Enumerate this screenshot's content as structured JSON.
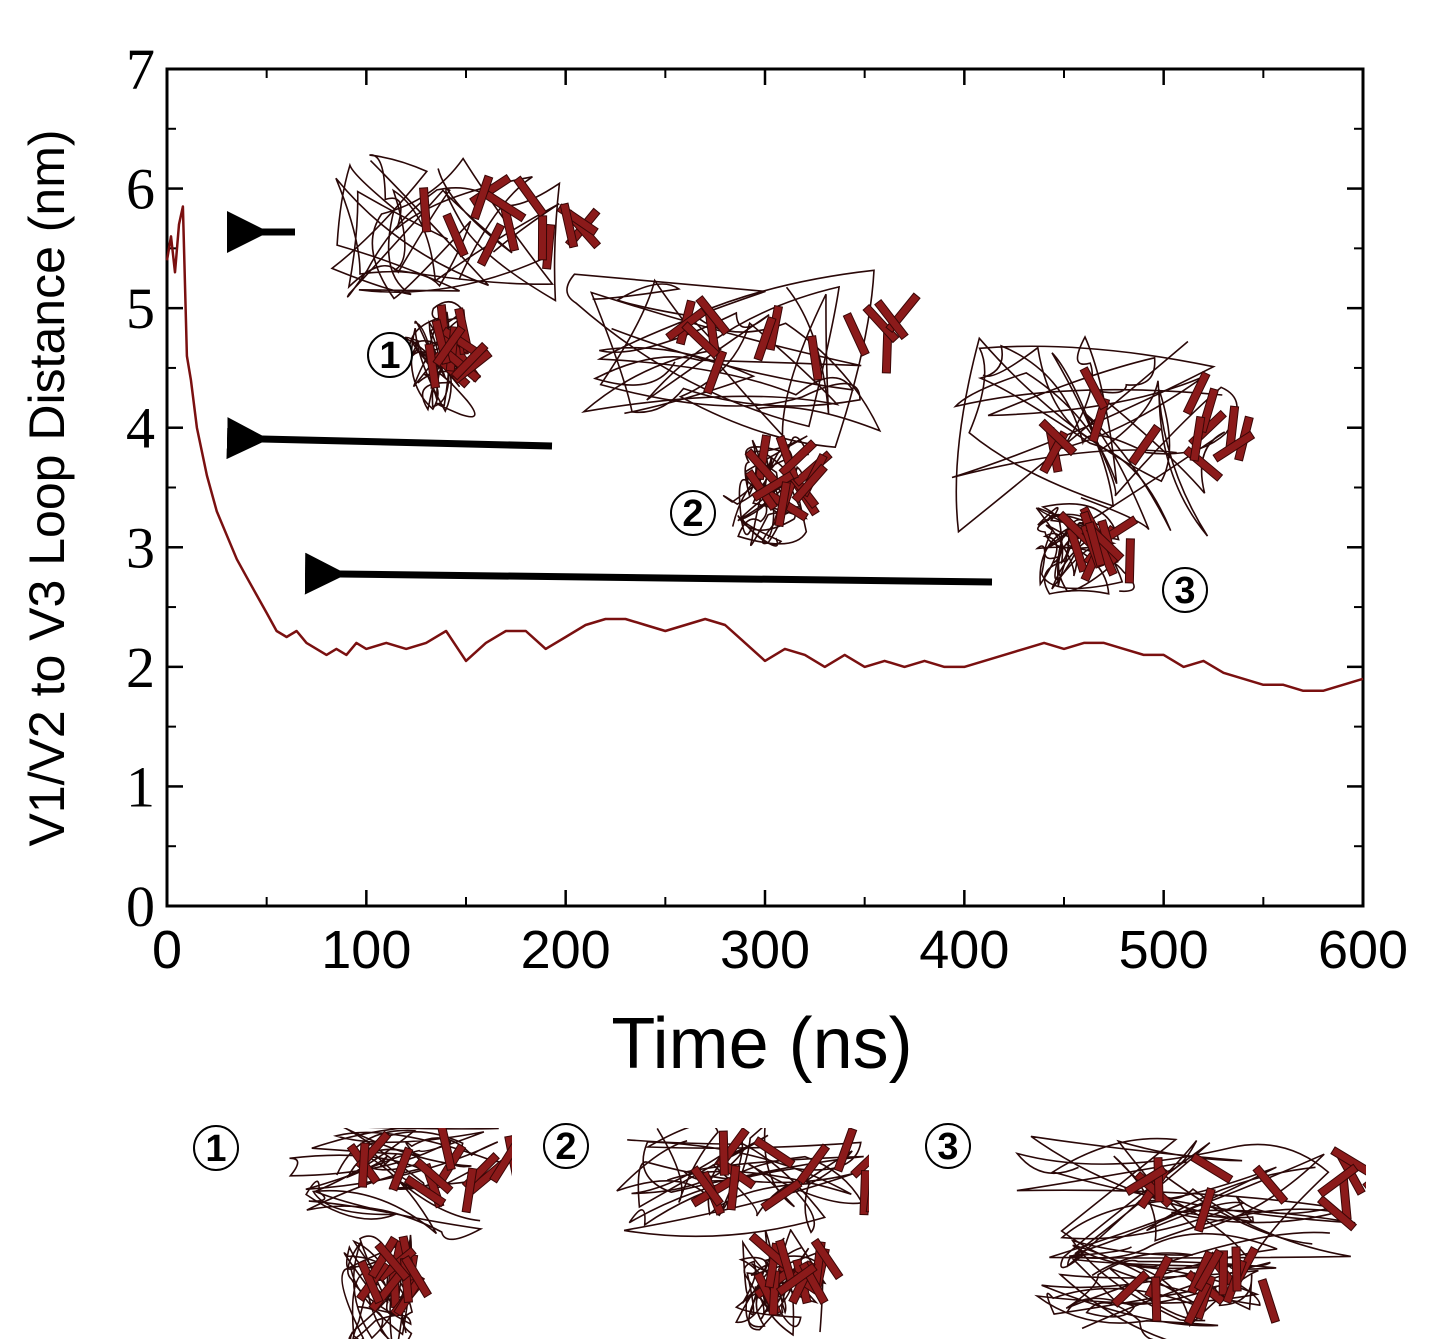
{
  "chart_data": {
    "type": "line",
    "x_label": "Time (ns)",
    "y_label": "V1/V2 to V3 Loop Distance (nm)",
    "x": [
      0,
      2,
      4,
      6,
      8,
      10,
      12,
      15,
      20,
      25,
      30,
      35,
      40,
      45,
      50,
      55,
      60,
      65,
      70,
      75,
      80,
      85,
      90,
      95,
      100,
      110,
      120,
      130,
      140,
      150,
      160,
      170,
      180,
      190,
      200,
      210,
      220,
      230,
      240,
      250,
      260,
      270,
      280,
      290,
      300,
      310,
      320,
      330,
      340,
      350,
      360,
      370,
      380,
      390,
      400,
      410,
      420,
      430,
      440,
      450,
      460,
      470,
      480,
      490,
      500,
      510,
      520,
      530,
      540,
      550,
      560,
      570,
      580,
      590,
      600
    ],
    "values": [
      5.4,
      5.6,
      5.3,
      5.7,
      5.85,
      4.6,
      4.4,
      4.0,
      3.6,
      3.3,
      3.1,
      2.9,
      2.75,
      2.6,
      2.45,
      2.3,
      2.25,
      2.3,
      2.2,
      2.15,
      2.1,
      2.15,
      2.1,
      2.2,
      2.15,
      2.2,
      2.15,
      2.2,
      2.3,
      2.05,
      2.2,
      2.3,
      2.3,
      2.15,
      2.25,
      2.35,
      2.4,
      2.4,
      2.35,
      2.3,
      2.35,
      2.4,
      2.35,
      2.2,
      2.05,
      2.15,
      2.1,
      2.0,
      2.1,
      2.0,
      2.05,
      2.0,
      2.05,
      2.0,
      2.0,
      2.05,
      2.1,
      2.15,
      2.2,
      2.15,
      2.2,
      2.2,
      2.15,
      2.1,
      2.1,
      2.0,
      2.05,
      1.95,
      1.9,
      1.85,
      1.85,
      1.8,
      1.8,
      1.85,
      1.9
    ],
    "color": "#7a1010",
    "xlim": [
      0,
      600
    ],
    "ylim": [
      0,
      7
    ],
    "xticks": [
      0,
      100,
      200,
      300,
      400,
      500,
      600
    ],
    "yticks": [
      0,
      1,
      2,
      3,
      4,
      5,
      6,
      7
    ],
    "xminorticks": [
      50,
      150,
      250,
      350,
      450,
      550
    ],
    "yminorticks": [
      0.5,
      1.5,
      2.5,
      3.5,
      4.5,
      5.5,
      6.5
    ],
    "annotations": [
      "1",
      "2",
      "3"
    ],
    "inset_labels": [
      "1",
      "2",
      "3"
    ]
  }
}
